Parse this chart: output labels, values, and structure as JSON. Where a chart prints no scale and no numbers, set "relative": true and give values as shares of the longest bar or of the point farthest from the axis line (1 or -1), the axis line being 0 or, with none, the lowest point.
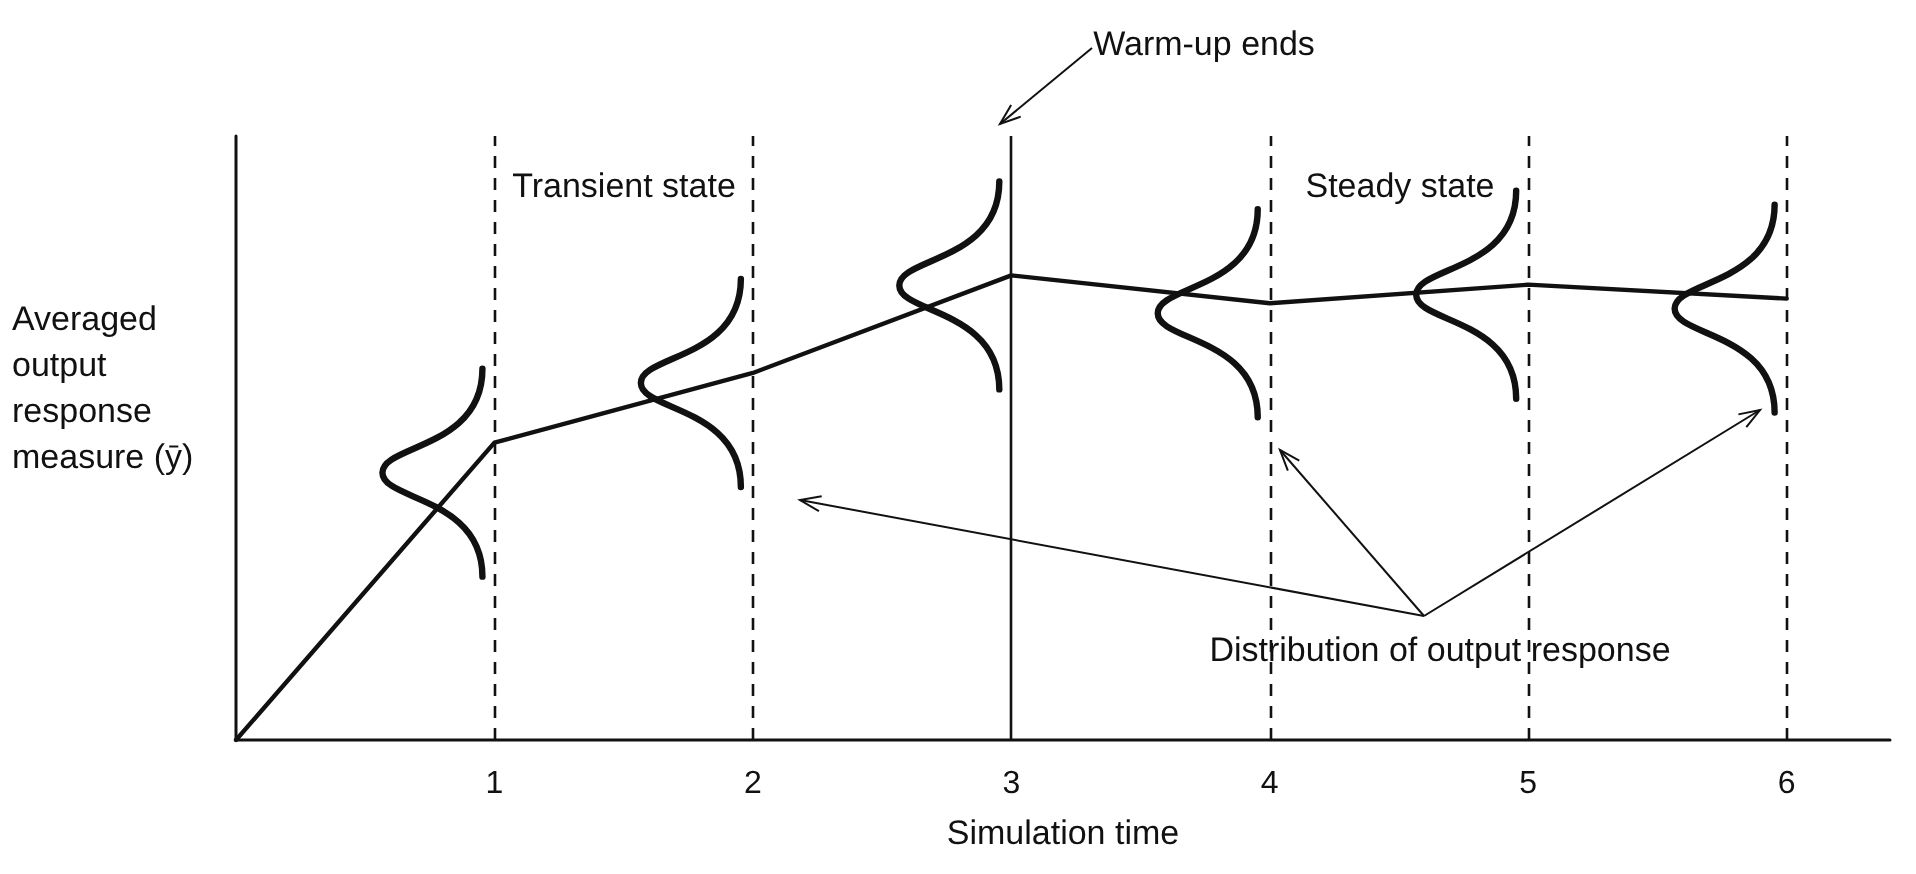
{
  "chart_data": {
    "type": "line",
    "relative": true,
    "xlabel": "Simulation time",
    "ylabel": "Averaged output response measure (ȳ)",
    "x": [
      0,
      1,
      2,
      3,
      4,
      5,
      6
    ],
    "xlim": [
      0,
      6.4
    ],
    "xticks": [
      1,
      2,
      3,
      4,
      5,
      6
    ],
    "series": [
      {
        "color": "#111111",
        "values": [
          0,
          0.64,
          0.79,
          1,
          0.94,
          0.98,
          0.95
        ]
      }
    ],
    "marker": "none",
    "line_style": "solid",
    "grid": false,
    "ref_lines": [
      {
        "axis": "x",
        "value": 1,
        "line_style": "dashed",
        "color": "#111111"
      },
      {
        "axis": "x",
        "value": 2,
        "line_style": "dashed",
        "color": "#111111"
      },
      {
        "axis": "x",
        "value": 3,
        "line_style": "solid",
        "color": "#111111"
      },
      {
        "axis": "x",
        "value": 4,
        "line_style": "dashed",
        "color": "#111111"
      },
      {
        "axis": "x",
        "value": 5,
        "line_style": "dashed",
        "color": "#111111"
      },
      {
        "axis": "x",
        "value": 6,
        "line_style": "dashed",
        "color": "#111111"
      }
    ],
    "annotations": [
      "Transient state",
      "Steady state",
      "Warm-up ends",
      "Distribution of output response"
    ]
  }
}
